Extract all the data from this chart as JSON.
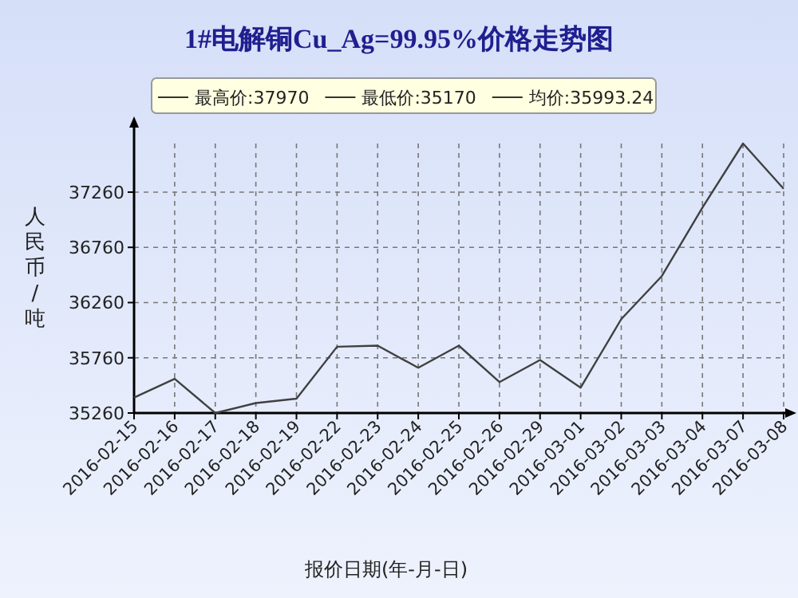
{
  "chart_data": {
    "type": "line",
    "title": "1#电解铜Cu_Ag=99.95%价格走势图",
    "xlabel": "报价日期(年-月-日)",
    "ylabel": "人民币/吨",
    "categories": [
      "2016-02-15",
      "2016-02-16",
      "2016-02-17",
      "2016-02-18",
      "2016-02-19",
      "2016-02-22",
      "2016-02-23",
      "2016-02-24",
      "2016-02-25",
      "2016-02-26",
      "2016-02-29",
      "2016-03-01",
      "2016-03-02",
      "2016-03-03",
      "2016-03-04",
      "2016-03-07",
      "2016-03-08"
    ],
    "series": [
      {
        "color": "#404040",
        "values": [
          35400,
          35570,
          35260,
          35350,
          35390,
          35860,
          35870,
          35670,
          35870,
          35540,
          35740,
          35490,
          36110,
          36500,
          37120,
          37700,
          37290
        ]
      }
    ],
    "ylim": [
      35260,
      37700
    ],
    "yticks": [
      35260,
      35760,
      36260,
      36760,
      37260
    ],
    "grid": true,
    "marker": "none",
    "annotations": [
      "最高价:37970",
      "最低价:35170",
      "均价:35993.24"
    ]
  }
}
